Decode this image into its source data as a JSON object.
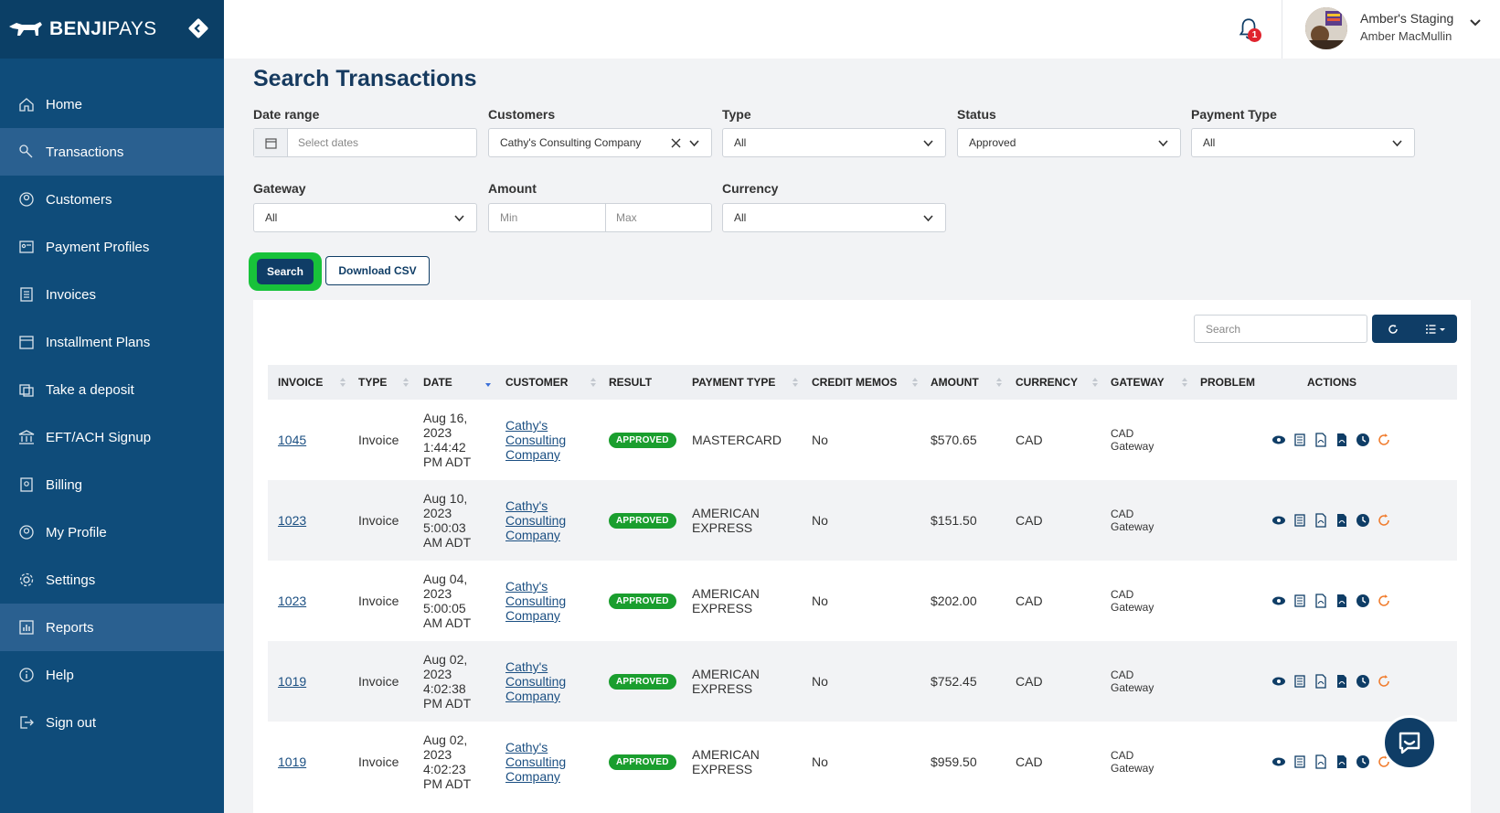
{
  "brand": {
    "name_bold": "BENJI",
    "name_light": "PAYS"
  },
  "colors": {
    "sidebar": "#0f4c7a",
    "primary": "#0f3d66",
    "accent_green": "#18c23a",
    "approved": "#1a9e2e",
    "badge_red": "#e0232e"
  },
  "sidebar": {
    "items": [
      {
        "label": "Home",
        "icon": "home-icon",
        "active": false
      },
      {
        "label": "Transactions",
        "icon": "transactions-icon",
        "active": true
      },
      {
        "label": "Customers",
        "icon": "customers-icon",
        "active": false
      },
      {
        "label": "Payment Profiles",
        "icon": "payment-profiles-icon",
        "active": false
      },
      {
        "label": "Invoices",
        "icon": "invoices-icon",
        "active": false
      },
      {
        "label": "Installment Plans",
        "icon": "calendar-icon",
        "active": false
      },
      {
        "label": "Take a deposit",
        "icon": "deposit-icon",
        "active": false
      },
      {
        "label": "EFT/ACH Signup",
        "icon": "bank-icon",
        "active": false
      },
      {
        "label": "Billing",
        "icon": "billing-icon",
        "active": false
      },
      {
        "label": "My Profile",
        "icon": "profile-icon",
        "active": false
      },
      {
        "label": "Settings",
        "icon": "gear-icon",
        "active": false
      },
      {
        "label": "Reports",
        "icon": "reports-icon",
        "active": true
      },
      {
        "label": "Help",
        "icon": "info-icon",
        "active": false
      },
      {
        "label": "Sign out",
        "icon": "sign-out-icon",
        "active": false
      }
    ]
  },
  "header": {
    "notification_count": "1",
    "org_name": "Amber's Staging",
    "user_name": "Amber MacMullin"
  },
  "page": {
    "title": "Search Transactions"
  },
  "filters": {
    "date_range": {
      "label": "Date range",
      "placeholder": "Select dates"
    },
    "customers": {
      "label": "Customers",
      "value": "Cathy's Consulting Company"
    },
    "type": {
      "label": "Type",
      "value": "All"
    },
    "status": {
      "label": "Status",
      "value": "Approved"
    },
    "payment_type": {
      "label": "Payment Type",
      "value": "All"
    },
    "gateway": {
      "label": "Gateway",
      "value": "All"
    },
    "amount": {
      "label": "Amount",
      "min_placeholder": "Min",
      "max_placeholder": "Max"
    },
    "currency": {
      "label": "Currency",
      "value": "All"
    },
    "search_label": "Search",
    "csv_label": "Download CSV"
  },
  "table": {
    "search_placeholder": "Search",
    "columns": [
      "INVOICE",
      "TYPE",
      "DATE",
      "CUSTOMER",
      "RESULT",
      "PAYMENT TYPE",
      "CREDIT MEMOS",
      "AMOUNT",
      "CURRENCY",
      "GATEWAY",
      "PROBLEM",
      "ACTIONS"
    ],
    "rows": [
      {
        "invoice": "1045",
        "type": "Invoice",
        "date": "Aug 16, 2023 1:44:42 PM ADT",
        "customer": "Cathy's Consulting Company",
        "result": "APPROVED",
        "payment_type": "MASTERCARD",
        "credit_memos": "No",
        "amount": "$570.65",
        "currency": "CAD",
        "gateway": "CAD Gateway",
        "problem": ""
      },
      {
        "invoice": "1023",
        "type": "Invoice",
        "date": "Aug 10, 2023 5:00:03 AM ADT",
        "customer": "Cathy's Consulting Company",
        "result": "APPROVED",
        "payment_type": "AMERICAN EXPRESS",
        "credit_memos": "No",
        "amount": "$151.50",
        "currency": "CAD",
        "gateway": "CAD Gateway",
        "problem": ""
      },
      {
        "invoice": "1023",
        "type": "Invoice",
        "date": "Aug 04, 2023 5:00:05 AM ADT",
        "customer": "Cathy's Consulting Company",
        "result": "APPROVED",
        "payment_type": "AMERICAN EXPRESS",
        "credit_memos": "No",
        "amount": "$202.00",
        "currency": "CAD",
        "gateway": "CAD Gateway",
        "problem": ""
      },
      {
        "invoice": "1019",
        "type": "Invoice",
        "date": "Aug 02, 2023 4:02:38 PM ADT",
        "customer": "Cathy's Consulting Company",
        "result": "APPROVED",
        "payment_type": "AMERICAN EXPRESS",
        "credit_memos": "No",
        "amount": "$752.45",
        "currency": "CAD",
        "gateway": "CAD Gateway",
        "problem": ""
      },
      {
        "invoice": "1019",
        "type": "Invoice",
        "date": "Aug 02, 2023 4:02:23 PM ADT",
        "customer": "Cathy's Consulting Company",
        "result": "APPROVED",
        "payment_type": "AMERICAN EXPRESS",
        "credit_memos": "No",
        "amount": "$959.50",
        "currency": "CAD",
        "gateway": "CAD Gateway",
        "problem": ""
      }
    ]
  }
}
